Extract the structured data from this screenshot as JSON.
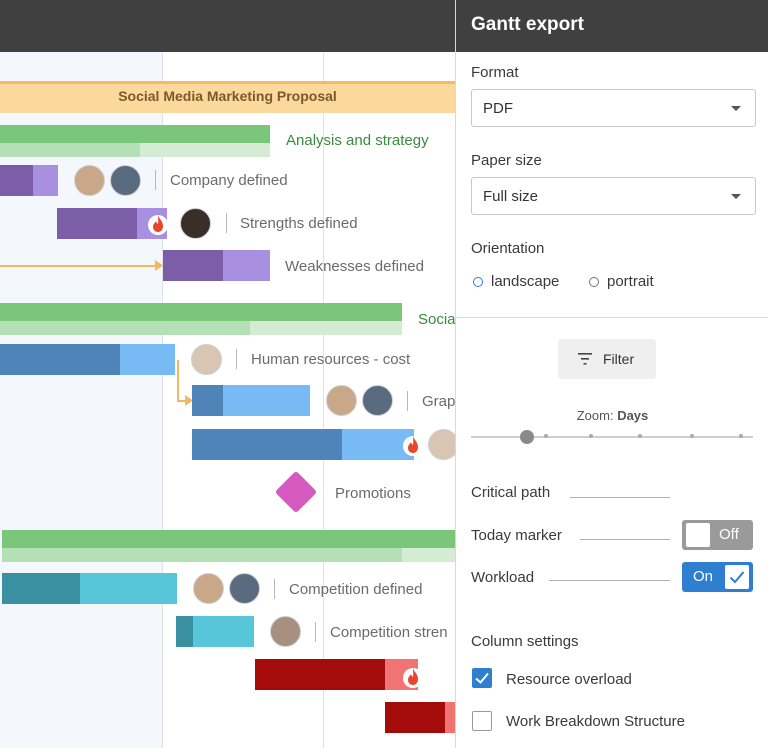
{
  "panel": {
    "title": "Gantt export",
    "format": {
      "label": "Format",
      "value": "PDF"
    },
    "paper_size": {
      "label": "Paper size",
      "value": "Full size"
    },
    "orientation": {
      "label": "Orientation",
      "options": [
        "landscape",
        "portrait"
      ],
      "selected": "landscape"
    },
    "filter_label": "Filter",
    "zoom": {
      "prefix": "Zoom: ",
      "value": "Days",
      "level": 0.2
    },
    "critical_path": {
      "label": "Critical path"
    },
    "today_marker": {
      "label": "Today marker",
      "state": "Off"
    },
    "workload": {
      "label": "Workload",
      "state": "On"
    },
    "column_settings": {
      "label": "Column settings",
      "items": [
        {
          "label": "Resource overload",
          "checked": true
        },
        {
          "label": "Work Breakdown Structure",
          "checked": false
        }
      ]
    }
  },
  "gantt": {
    "project": "Social Media Marketing Proposal",
    "groups": [
      {
        "label": "Analysis and strategy"
      },
      {
        "label": "Socia"
      }
    ],
    "tasks": [
      {
        "label": "Company defined"
      },
      {
        "label": "Strengths defined"
      },
      {
        "label": "Weaknesses defined"
      },
      {
        "label": "Human resources - cost"
      },
      {
        "label": "Grap"
      },
      {
        "label": "Promotions"
      },
      {
        "label": "Competition defined"
      },
      {
        "label": "Competition stren"
      }
    ]
  },
  "colors": {
    "purple_dark": "#7b5ea7",
    "purple_light": "#a98fe0",
    "blue_dark": "#4f84b8",
    "blue_light": "#78baf4",
    "teal_dark": "#3a8fa0",
    "teal_light": "#56c6d8",
    "red_dark": "#a50b0b",
    "red_light": "#f07474",
    "green": "#7ac77c",
    "accent": "#2f7fd1"
  }
}
